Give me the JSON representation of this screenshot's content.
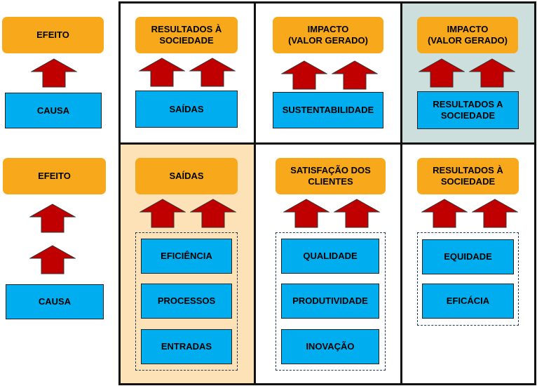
{
  "colors": {
    "orange_box": "#F7A81B",
    "blue_box": "#00AEEF",
    "arrow_fill": "#C00000",
    "highlight_grey": "#CCDFDC",
    "highlight_peach": "#FCE2B6"
  },
  "icons": {
    "arrow": "up-arrow-icon"
  },
  "row1": {
    "left": {
      "effect": "EFEITO",
      "cause": "CAUSA"
    },
    "col1": {
      "top": "RESULTADOS À\nSOCIEDADE",
      "bottom": "SAÍDAS"
    },
    "col2": {
      "top": "IMPACTO\n(VALOR GERADO)",
      "bottom": "SUSTENTABILIDADE"
    },
    "col3": {
      "top": "IMPACTO\n(VALOR GERADO)",
      "bottom": "RESULTADOS A\nSOCIEDADE"
    }
  },
  "row2": {
    "left": {
      "effect": "EFEITO",
      "cause": "CAUSA"
    },
    "col1": {
      "top": "SAÍDAS",
      "items": [
        "EFICIÊNCIA",
        "PROCESSOS",
        "ENTRADAS"
      ]
    },
    "col2": {
      "top": "SATISFAÇÃO DOS\nCLIENTES",
      "items": [
        "QUALIDADE",
        "PRODUTIVIDADE",
        "INOVAÇÃO"
      ]
    },
    "col3": {
      "top": "RESULTADOS À\nSOCIEDADE",
      "items": [
        "EQUIDADE",
        "EFICÁCIA"
      ]
    }
  }
}
